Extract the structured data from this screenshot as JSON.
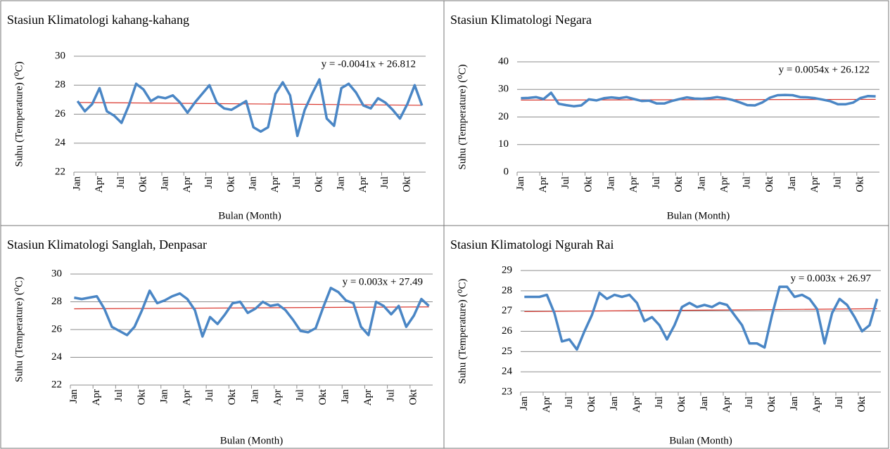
{
  "chart_data": [
    {
      "type": "line",
      "title": "Stasiun  Klimatologi kahang-kahang",
      "ylabel": "Suhu (Temperature) (⁰C)",
      "xlabel": "Bulan (Month)",
      "categories": [
        "Jan",
        null,
        null,
        "Apr",
        null,
        null,
        "Jul",
        null,
        null,
        "Okt",
        null,
        null,
        "Jan",
        null,
        null,
        "Apr",
        null,
        null,
        "Jul",
        null,
        null,
        "Okt",
        null,
        null,
        "Jan",
        null,
        null,
        "Apr",
        null,
        null,
        "Jul",
        null,
        null,
        "Okt",
        null,
        null,
        "Jan",
        null,
        null,
        "Apr",
        null,
        null,
        "Jul",
        null,
        null,
        "Okt",
        null,
        null
      ],
      "values": [
        26.9,
        26.2,
        26.7,
        27.8,
        26.2,
        25.9,
        25.4,
        26.6,
        28.1,
        27.7,
        26.9,
        27.2,
        27.1,
        27.3,
        26.8,
        26.1,
        26.8,
        27.4,
        28.0,
        26.8,
        26.4,
        26.3,
        26.6,
        26.9,
        25.1,
        24.8,
        25.1,
        27.4,
        28.2,
        27.3,
        24.5,
        26.3,
        27.4,
        28.4,
        25.7,
        25.2,
        27.8,
        28.1,
        27.5,
        26.6,
        26.4,
        27.1,
        26.8,
        26.3,
        25.7,
        26.7,
        28.0,
        26.6
      ],
      "color": "#4a86c5",
      "trendline": {
        "slope": -0.0041,
        "intercept": 26.812,
        "label": "y = -0.0041x + 26.812",
        "color": "#d9342b"
      },
      "ylim": [
        22,
        30
      ],
      "yticks": [
        22,
        24,
        26,
        28,
        30
      ],
      "grid": true
    },
    {
      "type": "line",
      "title": "Stasiun Klimatologi Negara",
      "ylabel": "Suhu (Temperature) (⁰C)",
      "xlabel": "Bulan (Month)",
      "categories": [
        "Jan",
        null,
        null,
        "Apr",
        null,
        null,
        "Jul",
        null,
        null,
        "Okt",
        null,
        null,
        "Jan",
        null,
        null,
        "Apr",
        null,
        null,
        "Jul",
        null,
        null,
        "Okt",
        null,
        null,
        "Jan",
        null,
        null,
        "Apr",
        null,
        null,
        "Jul",
        null,
        null,
        "Okt",
        null,
        null,
        "Jan",
        null,
        null,
        "Apr",
        null,
        null,
        "Jul",
        null,
        null,
        "Okt",
        null,
        null
      ],
      "values": [
        26.8,
        26.9,
        27.2,
        26.5,
        28.8,
        24.8,
        24.3,
        23.9,
        24.2,
        26.4,
        26.0,
        26.8,
        27.1,
        26.8,
        27.2,
        26.5,
        25.8,
        25.9,
        24.9,
        24.9,
        25.8,
        26.5,
        27.1,
        26.7,
        26.6,
        26.8,
        27.2,
        26.8,
        26.2,
        25.3,
        24.3,
        24.2,
        25.3,
        27.0,
        27.9,
        28.0,
        27.9,
        27.2,
        27.1,
        26.8,
        26.3,
        25.7,
        24.6,
        24.6,
        25.2,
        26.9,
        27.6,
        27.5
      ],
      "color": "#4a86c5",
      "trendline": {
        "slope": 0.0054,
        "intercept": 26.122,
        "label": "y = 0.0054x + 26.122",
        "color": "#d9342b"
      },
      "ylim": [
        0,
        40
      ],
      "yticks": [
        0,
        10,
        20,
        30,
        40
      ],
      "grid": true
    },
    {
      "type": "line",
      "title": "Stasiun Klimatologi Sanglah, Denpasar",
      "ylabel": "Suhu (Temperature) (⁰C)",
      "xlabel": "Bulan (Month)",
      "categories": [
        "Jan",
        null,
        null,
        "Apr",
        null,
        null,
        "Jul",
        null,
        null,
        "Okt",
        null,
        null,
        "Jan",
        null,
        null,
        "Apr",
        null,
        null,
        "Jul",
        null,
        null,
        "Okt",
        null,
        null,
        "Jan",
        null,
        null,
        "Apr",
        null,
        null,
        "Jul",
        null,
        null,
        "Okt",
        null,
        null,
        "Jan",
        null,
        null,
        "Apr",
        null,
        null,
        "Jul",
        null,
        null,
        "Okt",
        null,
        null
      ],
      "values": [
        28.3,
        28.2,
        28.3,
        28.4,
        27.5,
        26.2,
        25.9,
        25.6,
        26.2,
        27.4,
        28.8,
        27.9,
        28.1,
        28.4,
        28.6,
        28.2,
        27.4,
        25.5,
        26.9,
        26.4,
        27.1,
        27.9,
        28.0,
        27.2,
        27.5,
        28.0,
        27.7,
        27.8,
        27.4,
        26.7,
        25.9,
        25.8,
        26.1,
        27.6,
        29.0,
        28.7,
        28.1,
        27.9,
        26.2,
        25.6,
        28.0,
        27.7,
        27.1,
        27.7,
        26.2,
        27.0,
        28.2,
        27.7
      ],
      "color": "#4a86c5",
      "trendline": {
        "slope": 0.003,
        "intercept": 27.49,
        "label": "y = 0.003x + 27.49",
        "color": "#d9342b"
      },
      "ylim": [
        22,
        30
      ],
      "yticks": [
        22,
        24,
        26,
        28,
        30
      ],
      "grid": true
    },
    {
      "type": "line",
      "title": "Stasiun Klimatologi Ngurah Rai",
      "ylabel": "Suhu (Temperature) (⁰C)",
      "xlabel": "Bulan (Month)",
      "categories": [
        "Jan",
        null,
        null,
        "Apr",
        null,
        null,
        "Jul",
        null,
        null,
        "Okt",
        null,
        null,
        "Jan",
        null,
        null,
        "Apr",
        null,
        null,
        "Jul",
        null,
        null,
        "Okt",
        null,
        null,
        "Jan",
        null,
        null,
        "Apr",
        null,
        null,
        "Jul",
        null,
        null,
        "Okt",
        null,
        null,
        "Jan",
        null,
        null,
        "Apr",
        null,
        null,
        "Jul",
        null,
        null,
        "Okt",
        null,
        null
      ],
      "values": [
        27.7,
        27.7,
        27.7,
        27.8,
        26.9,
        25.5,
        25.6,
        25.1,
        26.0,
        26.8,
        27.9,
        27.6,
        27.8,
        27.7,
        27.8,
        27.4,
        26.5,
        26.7,
        26.3,
        25.6,
        26.3,
        27.2,
        27.4,
        27.2,
        27.3,
        27.2,
        27.4,
        27.3,
        26.8,
        26.3,
        25.4,
        25.4,
        25.2,
        26.8,
        28.2,
        28.2,
        27.7,
        27.8,
        27.6,
        27.1,
        25.4,
        26.9,
        27.6,
        27.3,
        26.7,
        26.0,
        26.3,
        27.6
      ],
      "color": "#4a86c5",
      "trendline": {
        "slope": 0.003,
        "intercept": 26.97,
        "label": "y = 0.003x + 26.97",
        "color": "#d9342b"
      },
      "ylim": [
        23,
        29
      ],
      "yticks": [
        23,
        24,
        25,
        26,
        27,
        28,
        29
      ],
      "grid": true
    }
  ]
}
